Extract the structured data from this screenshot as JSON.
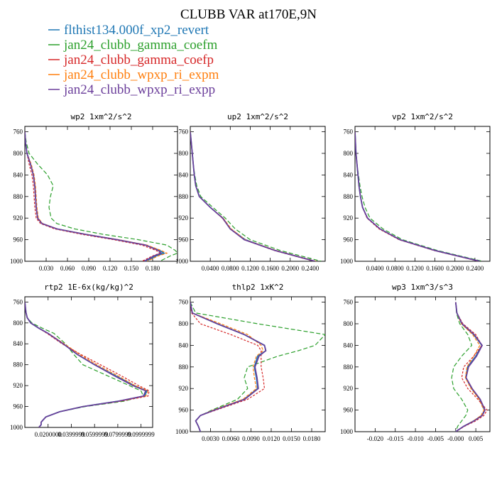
{
  "figure": {
    "title": "CLUBB VAR at170E,9N",
    "legend": [
      {
        "name": "flthist134.000f_xp2_revert",
        "color": "#1f77b4"
      },
      {
        "name": "jan24_clubb_gamma_coefm",
        "color": "#2ca02c"
      },
      {
        "name": "jan24_clubb_gamma_coefp",
        "color": "#d62728"
      },
      {
        "name": "jan24_clubb_wpxp_ri_expm",
        "color": "#ff7f0e"
      },
      {
        "name": "jan24_clubb_wpxp_ri_expp",
        "color": "#6a3d9a"
      }
    ]
  },
  "chart_data": [
    {
      "type": "line",
      "title": "wp2  1xm^2/s^2",
      "ylim": [
        1000,
        750
      ],
      "yticks": [
        760,
        800,
        840,
        880,
        920,
        960,
        1000
      ],
      "xlim": [
        0,
        0.215
      ],
      "xticks": [
        0.03,
        0.06,
        0.09,
        0.12,
        0.15,
        0.18
      ],
      "xtick_labels": [
        "0.030",
        "0.060",
        "0.090",
        "0.120",
        "0.150",
        "0.180"
      ],
      "y": [
        760,
        780,
        800,
        820,
        840,
        860,
        880,
        900,
        920,
        930,
        940,
        950,
        960,
        970,
        980,
        985,
        990,
        1000
      ],
      "series": [
        {
          "name": "flthist134.000f_xp2_revert",
          "values": [
            0,
            0.001,
            0.003,
            0.008,
            0.012,
            0.014,
            0.015,
            0.016,
            0.018,
            0.024,
            0.045,
            0.085,
            0.13,
            0.17,
            0.19,
            0.196,
            0.185,
            0.17
          ]
        },
        {
          "name": "jan24_clubb_gamma_coefm",
          "values": [
            0,
            0.002,
            0.006,
            0.018,
            0.032,
            0.04,
            0.036,
            0.034,
            0.037,
            0.045,
            0.07,
            0.11,
            0.16,
            0.2,
            0.212,
            0.215,
            0.205,
            0.19
          ]
        },
        {
          "name": "jan24_clubb_gamma_coefp",
          "values": [
            0,
            0.001,
            0.003,
            0.006,
            0.01,
            0.012,
            0.013,
            0.014,
            0.016,
            0.022,
            0.042,
            0.08,
            0.125,
            0.165,
            0.185,
            0.19,
            0.18,
            0.165
          ]
        },
        {
          "name": "jan24_clubb_wpxp_ri_expm",
          "values": [
            0,
            0.001,
            0.003,
            0.009,
            0.013,
            0.015,
            0.016,
            0.017,
            0.019,
            0.025,
            0.046,
            0.086,
            0.132,
            0.172,
            0.192,
            0.2,
            0.188,
            0.172
          ]
        },
        {
          "name": "jan24_clubb_wpxp_ri_expp",
          "values": [
            0,
            0.001,
            0.003,
            0.008,
            0.012,
            0.014,
            0.015,
            0.016,
            0.018,
            0.024,
            0.045,
            0.085,
            0.13,
            0.17,
            0.188,
            0.192,
            0.182,
            0.168
          ]
        }
      ]
    },
    {
      "type": "line",
      "title": "up2  1xm^2/s^2",
      "ylim": [
        1000,
        750
      ],
      "yticks": [
        760,
        800,
        840,
        880,
        920,
        960,
        1000
      ],
      "xlim": [
        0,
        0.27
      ],
      "xticks": [
        0.04,
        0.08,
        0.12,
        0.16,
        0.2,
        0.24
      ],
      "xtick_labels": [
        "0.0400",
        "0.0800",
        "0.1200",
        "0.1600",
        "0.2000",
        "0.2400"
      ],
      "y": [
        760,
        780,
        800,
        820,
        840,
        860,
        880,
        900,
        920,
        940,
        960,
        980,
        1000
      ],
      "series": [
        {
          "name": "flthist134.000f_xp2_revert",
          "values": [
            0,
            0.002,
            0.004,
            0.006,
            0.008,
            0.011,
            0.018,
            0.04,
            0.065,
            0.08,
            0.11,
            0.17,
            0.25
          ]
        },
        {
          "name": "jan24_clubb_gamma_coefm",
          "values": [
            0,
            0.002,
            0.004,
            0.006,
            0.009,
            0.013,
            0.021,
            0.045,
            0.07,
            0.09,
            0.12,
            0.18,
            0.262
          ]
        },
        {
          "name": "jan24_clubb_gamma_coefp",
          "values": [
            0,
            0.002,
            0.004,
            0.006,
            0.008,
            0.011,
            0.018,
            0.04,
            0.064,
            0.08,
            0.108,
            0.168,
            0.248
          ]
        },
        {
          "name": "jan24_clubb_wpxp_ri_expm",
          "values": [
            0,
            0.002,
            0.004,
            0.006,
            0.008,
            0.011,
            0.018,
            0.04,
            0.066,
            0.082,
            0.11,
            0.172,
            0.252
          ]
        },
        {
          "name": "jan24_clubb_wpxp_ri_expp",
          "values": [
            0,
            0.002,
            0.004,
            0.006,
            0.008,
            0.011,
            0.018,
            0.04,
            0.065,
            0.08,
            0.108,
            0.17,
            0.25
          ]
        }
      ]
    },
    {
      "type": "line",
      "title": "vp2  1xm^2/s^2",
      "ylim": [
        1000,
        750
      ],
      "yticks": [
        760,
        800,
        840,
        880,
        920,
        960,
        1000
      ],
      "xlim": [
        0,
        0.27
      ],
      "xticks": [
        0.04,
        0.08,
        0.12,
        0.16,
        0.2,
        0.24
      ],
      "xtick_labels": [
        "0.0400",
        "0.0800",
        "0.1200",
        "0.1600",
        "0.2000",
        "0.2400"
      ],
      "y": [
        760,
        780,
        800,
        820,
        840,
        860,
        880,
        900,
        920,
        940,
        960,
        980,
        1000
      ],
      "series": [
        {
          "name": "flthist134.000f_xp2_revert",
          "values": [
            0,
            0.001,
            0.002,
            0.004,
            0.006,
            0.008,
            0.011,
            0.015,
            0.025,
            0.05,
            0.09,
            0.16,
            0.25
          ]
        },
        {
          "name": "jan24_clubb_gamma_coefm",
          "values": [
            0,
            0.001,
            0.002,
            0.004,
            0.007,
            0.01,
            0.014,
            0.02,
            0.03,
            0.056,
            0.095,
            0.165,
            0.255
          ]
        },
        {
          "name": "jan24_clubb_gamma_coefp",
          "values": [
            0,
            0.001,
            0.002,
            0.004,
            0.006,
            0.008,
            0.011,
            0.015,
            0.024,
            0.048,
            0.088,
            0.158,
            0.248
          ]
        },
        {
          "name": "jan24_clubb_wpxp_ri_expm",
          "values": [
            0,
            0.001,
            0.002,
            0.004,
            0.006,
            0.008,
            0.011,
            0.015,
            0.025,
            0.05,
            0.09,
            0.16,
            0.25
          ]
        },
        {
          "name": "jan24_clubb_wpxp_ri_expp",
          "values": [
            0,
            0.001,
            0.002,
            0.004,
            0.006,
            0.008,
            0.011,
            0.015,
            0.025,
            0.05,
            0.09,
            0.16,
            0.25
          ]
        }
      ]
    },
    {
      "type": "line",
      "title": "rtp2  1E-6x(kg/kg)^2",
      "ylim": [
        1000,
        750
      ],
      "yticks": [
        760,
        800,
        840,
        880,
        920,
        960,
        1000
      ],
      "xlim": [
        0,
        1.1
      ],
      "xticks": [
        0.2,
        0.4,
        0.6,
        0.8,
        1.0
      ],
      "xtick_labels": [
        "0.0200000",
        "0.0399999",
        "0.0599999",
        "0.0799999",
        "0.0999999"
      ],
      "y": [
        760,
        780,
        790,
        800,
        810,
        820,
        840,
        860,
        880,
        900,
        920,
        930,
        940,
        950,
        960,
        970,
        980,
        990,
        995,
        1000
      ],
      "series": [
        {
          "name": "flthist134.000f_xp2_revert",
          "values": [
            0,
            0.01,
            0.02,
            0.05,
            0.12,
            0.2,
            0.33,
            0.45,
            0.6,
            0.77,
            0.94,
            1.05,
            1.03,
            0.8,
            0.5,
            0.3,
            0.18,
            0.14,
            0.14,
            0.12
          ]
        },
        {
          "name": "jan24_clubb_gamma_coefm",
          "values": [
            0,
            0.01,
            0.02,
            0.06,
            0.15,
            0.25,
            0.35,
            0.42,
            0.5,
            0.7,
            0.9,
            1.0,
            1.02,
            0.85,
            0.52,
            0.3,
            0.18,
            0.14,
            0.14,
            0.12
          ]
        },
        {
          "name": "jan24_clubb_gamma_coefp",
          "values": [
            0,
            0.01,
            0.02,
            0.05,
            0.12,
            0.19,
            0.32,
            0.48,
            0.65,
            0.82,
            0.98,
            1.07,
            1.06,
            0.82,
            0.5,
            0.3,
            0.18,
            0.14,
            0.14,
            0.12
          ]
        },
        {
          "name": "jan24_clubb_wpxp_ri_expm",
          "values": [
            0,
            0.01,
            0.02,
            0.05,
            0.12,
            0.2,
            0.34,
            0.47,
            0.62,
            0.79,
            0.95,
            1.06,
            1.04,
            0.81,
            0.5,
            0.3,
            0.18,
            0.14,
            0.14,
            0.12
          ]
        },
        {
          "name": "jan24_clubb_wpxp_ri_expp",
          "values": [
            0,
            0.01,
            0.02,
            0.05,
            0.12,
            0.2,
            0.33,
            0.45,
            0.6,
            0.76,
            0.93,
            1.04,
            1.02,
            0.8,
            0.5,
            0.3,
            0.18,
            0.14,
            0.14,
            0.12
          ]
        }
      ]
    },
    {
      "type": "line",
      "title": "thlp2  1xK^2",
      "ylim": [
        1000,
        750
      ],
      "yticks": [
        760,
        800,
        840,
        880,
        920,
        960,
        1000
      ],
      "xlim": [
        0,
        0.02
      ],
      "xticks": [
        0.003,
        0.006,
        0.009,
        0.012,
        0.015,
        0.018
      ],
      "xtick_labels": [
        "0.0030",
        "0.0060",
        "0.0090",
        "0.0120",
        "0.0150",
        "0.0180"
      ],
      "y": [
        760,
        780,
        800,
        820,
        840,
        850,
        860,
        880,
        900,
        920,
        940,
        960,
        970,
        980,
        990,
        1000
      ],
      "series": [
        {
          "name": "flthist134.000f_xp2_revert",
          "values": [
            0.0,
            0.0003,
            0.004,
            0.008,
            0.011,
            0.0112,
            0.01,
            0.0095,
            0.0098,
            0.01,
            0.008,
            0.0035,
            0.0015,
            0.0008,
            0.0012,
            0.0015
          ]
        },
        {
          "name": "jan24_clubb_gamma_coefm",
          "values": [
            0.0,
            0.0008,
            0.01,
            0.02,
            0.0185,
            0.016,
            0.013,
            0.0085,
            0.008,
            0.0085,
            0.007,
            0.0032,
            0.0015,
            0.0008,
            0.0012,
            0.0015
          ]
        },
        {
          "name": "jan24_clubb_gamma_coefp",
          "values": [
            0.0,
            0.0002,
            0.0015,
            0.006,
            0.01,
            0.0105,
            0.0105,
            0.0105,
            0.0108,
            0.011,
            0.0085,
            0.0038,
            0.0015,
            0.0008,
            0.0012,
            0.0015
          ]
        },
        {
          "name": "jan24_clubb_wpxp_ri_expm",
          "values": [
            0.0,
            0.0003,
            0.0045,
            0.0085,
            0.0105,
            0.0108,
            0.0098,
            0.0093,
            0.0095,
            0.0098,
            0.0078,
            0.0034,
            0.0015,
            0.0008,
            0.0012,
            0.0015
          ]
        },
        {
          "name": "jan24_clubb_wpxp_ri_expp",
          "values": [
            0.0,
            0.0003,
            0.004,
            0.008,
            0.011,
            0.0112,
            0.0102,
            0.0096,
            0.0099,
            0.0101,
            0.0081,
            0.0036,
            0.0015,
            0.0008,
            0.0012,
            0.0015
          ]
        }
      ]
    },
    {
      "type": "line",
      "title": "wp3  1xm^3/s^3",
      "ylim": [
        1000,
        750
      ],
      "yticks": [
        760,
        800,
        840,
        880,
        920,
        960,
        1000
      ],
      "xlim": [
        -0.025,
        0.0085
      ],
      "xticks": [
        -0.02,
        -0.015,
        -0.01,
        -0.005,
        0.0,
        0.005
      ],
      "xtick_labels": [
        "-0.020",
        "-0.015",
        "-0.010",
        "-0.005",
        "-0.000",
        "0.005"
      ],
      "y": [
        760,
        780,
        800,
        820,
        840,
        860,
        880,
        900,
        920,
        940,
        960,
        970,
        980,
        990,
        1000
      ],
      "series": [
        {
          "name": "flthist134.000f_xp2_revert",
          "values": [
            0.0,
            0.0003,
            0.0015,
            0.0045,
            0.0065,
            0.005,
            0.003,
            0.0025,
            0.004,
            0.006,
            0.0072,
            0.0065,
            0.0045,
            0.002,
            0.0
          ]
        },
        {
          "name": "jan24_clubb_gamma_coefm",
          "values": [
            0.0,
            0.0002,
            0.001,
            0.003,
            0.004,
            0.0015,
            -0.0005,
            -0.001,
            -0.0005,
            0.0015,
            0.003,
            0.0025,
            0.0015,
            0.0005,
            0.0
          ]
        },
        {
          "name": "jan24_clubb_gamma_coefp",
          "values": [
            0.0,
            0.0003,
            0.0018,
            0.005,
            0.0065,
            0.0045,
            0.002,
            0.0015,
            0.003,
            0.0055,
            0.0078,
            0.007,
            0.005,
            0.0022,
            0.0
          ]
        },
        {
          "name": "jan24_clubb_wpxp_ri_expm",
          "values": [
            0.0,
            0.0003,
            0.0014,
            0.0042,
            0.006,
            0.0045,
            0.0028,
            0.0024,
            0.0038,
            0.0058,
            0.007,
            0.0063,
            0.0044,
            0.002,
            0.0
          ]
        },
        {
          "name": "jan24_clubb_wpxp_ri_expp",
          "values": [
            0.0,
            0.0003,
            0.0016,
            0.0046,
            0.0066,
            0.0052,
            0.0032,
            0.0026,
            0.0041,
            0.0061,
            0.0073,
            0.0066,
            0.0046,
            0.002,
            0.0
          ]
        }
      ]
    }
  ]
}
